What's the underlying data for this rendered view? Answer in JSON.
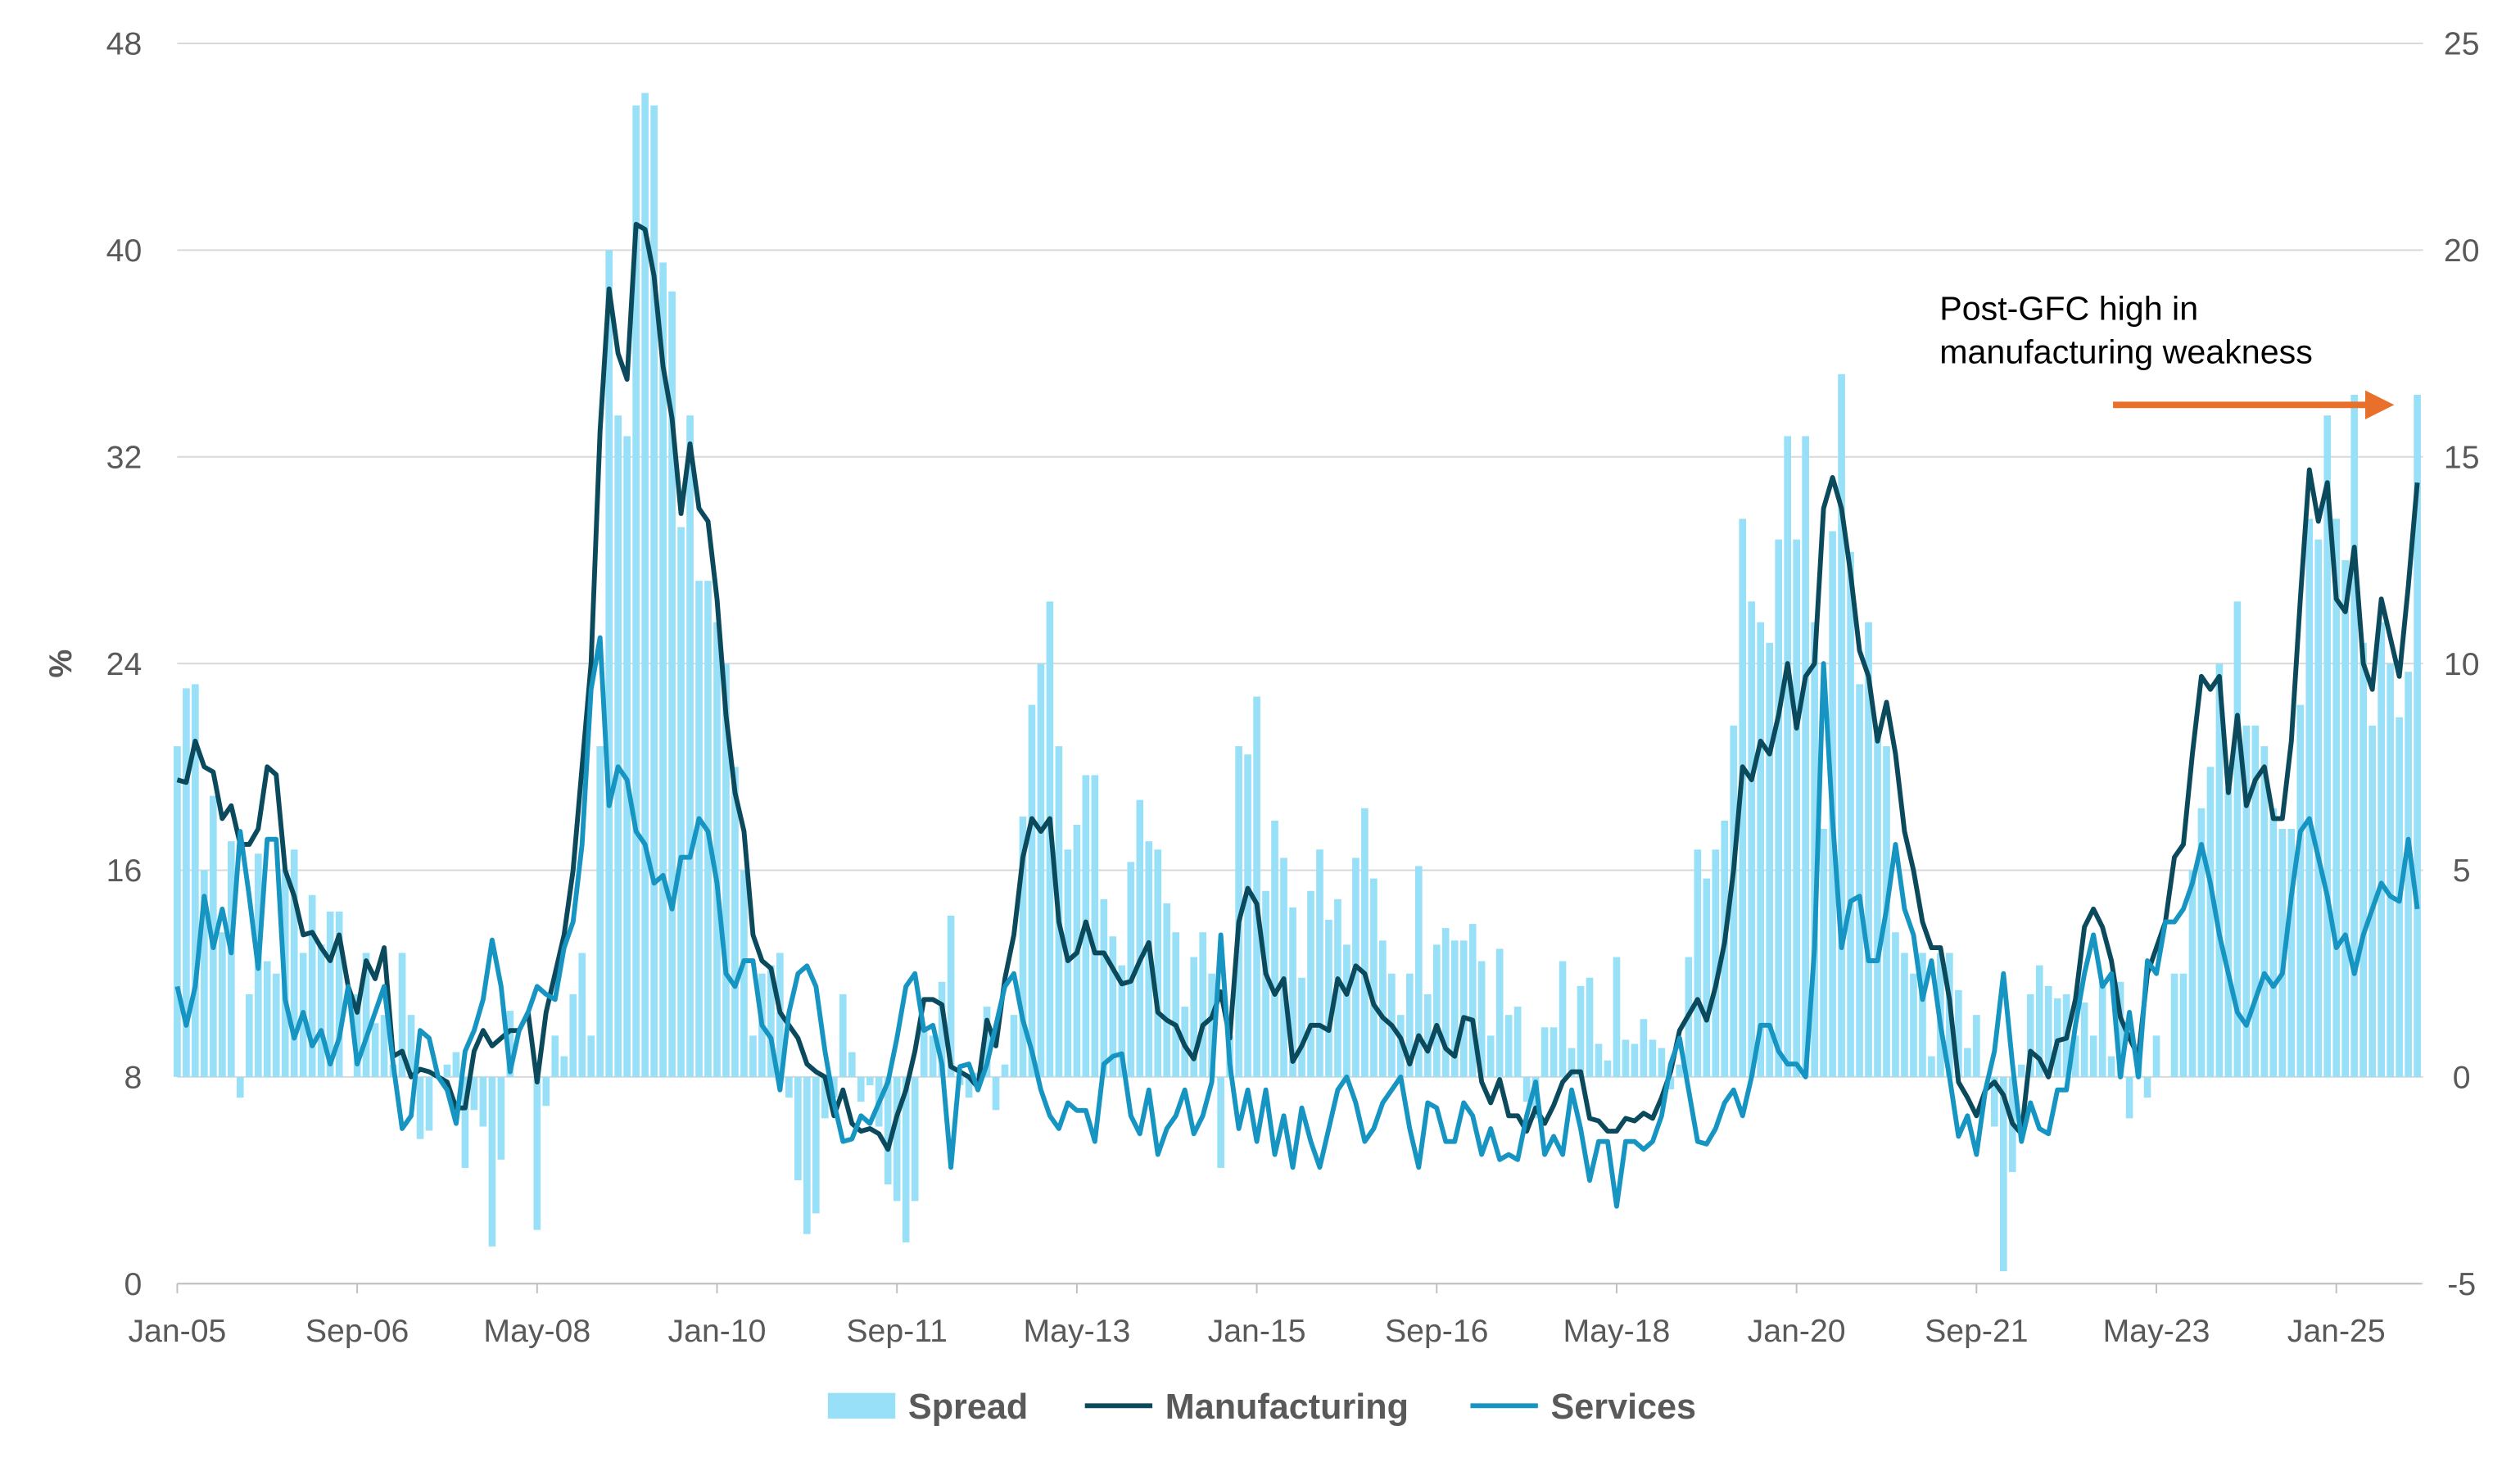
{
  "chart_data": {
    "type": "combo",
    "y_label": "%",
    "categories": [
      "Jan-05",
      null,
      null,
      null,
      null,
      null,
      null,
      null,
      null,
      null,
      null,
      null,
      null,
      null,
      null,
      null,
      null,
      null,
      null,
      null,
      "Sep-06",
      null,
      null,
      null,
      null,
      null,
      null,
      null,
      null,
      null,
      null,
      null,
      null,
      null,
      null,
      null,
      null,
      null,
      null,
      null,
      "May-08",
      null,
      null,
      null,
      null,
      null,
      null,
      null,
      null,
      null,
      null,
      null,
      null,
      null,
      null,
      null,
      null,
      null,
      null,
      null,
      "Jan-10",
      null,
      null,
      null,
      null,
      null,
      null,
      null,
      null,
      null,
      null,
      null,
      null,
      null,
      null,
      null,
      null,
      null,
      null,
      null,
      "Sep-11",
      null,
      null,
      null,
      null,
      null,
      null,
      null,
      null,
      null,
      null,
      null,
      null,
      null,
      null,
      null,
      null,
      null,
      null,
      null,
      "May-13",
      null,
      null,
      null,
      null,
      null,
      null,
      null,
      null,
      null,
      null,
      null,
      null,
      null,
      null,
      null,
      null,
      null,
      null,
      null,
      "Jan-15",
      null,
      null,
      null,
      null,
      null,
      null,
      null,
      null,
      null,
      null,
      null,
      null,
      null,
      null,
      null,
      null,
      null,
      null,
      null,
      "Sep-16",
      null,
      null,
      null,
      null,
      null,
      null,
      null,
      null,
      null,
      null,
      null,
      null,
      null,
      null,
      null,
      null,
      null,
      null,
      null,
      "May-18",
      null,
      null,
      null,
      null,
      null,
      null,
      null,
      null,
      null,
      null,
      null,
      null,
      null,
      null,
      null,
      null,
      null,
      null,
      null,
      "Jan-20",
      null,
      null,
      null,
      null,
      null,
      null,
      null,
      null,
      null,
      null,
      null,
      null,
      null,
      null,
      null,
      null,
      null,
      null,
      null,
      "Sep-21",
      null,
      null,
      null,
      null,
      null,
      null,
      null,
      null,
      null,
      null,
      null,
      null,
      null,
      null,
      null,
      null,
      null,
      null,
      null,
      "May-23",
      null,
      null,
      null,
      null,
      null,
      null,
      null,
      null,
      null,
      null,
      null,
      null,
      null,
      null,
      null,
      null,
      null,
      null,
      null,
      "Jan-25",
      null,
      null,
      null,
      null,
      null,
      null,
      null,
      null,
      null
    ],
    "series": [
      {
        "name": "Spread",
        "type": "bar",
        "axis": "y2",
        "color": "#97e0f7",
        "values": [
          8,
          9.4,
          9.5,
          5,
          6.8,
          3.5,
          5.7,
          -0.5,
          2,
          5.4,
          2.8,
          2.5,
          5,
          5.5,
          3,
          4.4,
          3.2,
          4,
          4,
          0,
          2,
          3,
          1.3,
          1.5,
          0.3,
          3,
          1.5,
          -1.5,
          -1.3,
          0,
          0.3,
          0.6,
          -2.2,
          -0.8,
          -1.2,
          -4.1,
          -2,
          1.6,
          0,
          0,
          -3.7,
          -0.7,
          1,
          0.5,
          2,
          3,
          1,
          8,
          20,
          16,
          15.5,
          23.5,
          23.8,
          23.5,
          19.7,
          19,
          13.3,
          16,
          12,
          12,
          11,
          10,
          7.5,
          5,
          1,
          2.5,
          2.7,
          3,
          -0.5,
          -2.5,
          -3.8,
          -3.3,
          -1,
          -0.5,
          2,
          0.6,
          -0.6,
          -0.2,
          -1.2,
          -2.6,
          -3,
          -4,
          -3,
          1.2,
          1,
          2.3,
          3.9,
          -0.2,
          -0.5,
          0.1,
          1.7,
          -0.8,
          0.3,
          1.5,
          6.3,
          9,
          10,
          11.5,
          8,
          5.5,
          6.1,
          7.3,
          7.3,
          4.3,
          3.4,
          2.7,
          5.2,
          6.7,
          5.7,
          5.5,
          4.2,
          3.5,
          1.7,
          2.9,
          3.5,
          2.5,
          -2.2,
          1,
          8,
          7.8,
          9.2,
          4.5,
          6.2,
          5.3,
          4.1,
          2.4,
          4.5,
          5.5,
          3.8,
          4.3,
          3.2,
          5.3,
          6.5,
          4.8,
          3.3,
          2.5,
          1.5,
          2.5,
          5.1,
          2,
          3.2,
          3.6,
          3.3,
          3.3,
          3.7,
          2.8,
          1,
          3.1,
          1.5,
          1.7,
          -0.6,
          -1,
          1.2,
          1.2,
          2.8,
          0.7,
          2.2,
          2.4,
          0.8,
          0.4,
          2.9,
          0.9,
          0.8,
          1.4,
          0.9,
          0.7,
          -0.3,
          0.3,
          2.9,
          5.5,
          4.8,
          5.5,
          6.2,
          8.5,
          13.5,
          11.5,
          11,
          10.5,
          13,
          15.5,
          13,
          15.5,
          11,
          6,
          13.2,
          17,
          12.7,
          9.5,
          11,
          8.5,
          8,
          3.5,
          3,
          2.5,
          3,
          0.5,
          3,
          3,
          2.1,
          0.7,
          1.5,
          0,
          -1.2,
          -4.7,
          -2.3,
          0.3,
          2,
          2.7,
          2.2,
          1.9,
          2,
          1,
          1.8,
          1,
          2.3,
          0.5,
          2.3,
          -1,
          0.8,
          -0.5,
          1,
          0,
          2.5,
          2.5,
          5,
          6.5,
          7.5,
          10,
          7,
          11.5,
          8.5,
          8.5,
          8,
          6.5,
          6,
          6,
          9,
          13.5,
          13,
          16,
          13.5,
          12.5,
          16.5,
          10.5,
          8.5,
          11,
          10,
          8.7,
          9.8,
          16.5
        ]
      },
      {
        "name": "Manufacturing",
        "type": "line",
        "color": "#0b4a5c",
        "values": [
          19.5,
          19.4,
          21,
          20,
          19.8,
          18,
          18.5,
          17,
          17,
          17.6,
          20,
          19.7,
          16,
          15,
          13.5,
          13.6,
          13,
          12.5,
          13.5,
          11.5,
          10.5,
          12.5,
          11.8,
          13,
          8.8,
          9,
          8,
          8.3,
          8.2,
          8,
          7.8,
          6.8,
          6.8,
          9,
          9.8,
          9.2,
          9.5,
          9.8,
          9.8,
          10.5,
          7.8,
          10.5,
          12,
          13.5,
          16,
          20,
          24,
          33,
          38.5,
          36,
          35,
          41,
          40.8,
          39,
          35.5,
          33.5,
          29.8,
          32.5,
          30,
          29.5,
          26.5,
          22,
          19,
          17.5,
          13.5,
          12.5,
          12.2,
          10.5,
          10,
          9.5,
          8.5,
          8.2,
          8,
          6.5,
          7.5,
          6.2,
          5.9,
          6,
          5.8,
          5.2,
          6.5,
          7.5,
          9,
          11,
          11,
          10.8,
          8.4,
          8.2,
          8,
          7.6,
          10.2,
          9.2,
          11.8,
          13.5,
          16.5,
          18,
          17.5,
          18,
          14,
          12.5,
          12.8,
          14,
          12.8,
          12.8,
          12.2,
          11.6,
          11.7,
          12.5,
          13.2,
          10.5,
          10.2,
          10,
          9.2,
          8.7,
          10,
          10.3,
          11.3,
          9.5,
          14,
          15.3,
          14.7,
          12,
          11.2,
          11.8,
          8.6,
          9.2,
          10,
          10,
          9.8,
          11.8,
          11.2,
          12.3,
          12,
          10.8,
          10.3,
          10,
          9.5,
          8.5,
          9.6,
          9,
          10,
          9.1,
          8.8,
          10.3,
          10.2,
          7.8,
          7,
          7.9,
          6.5,
          6.5,
          5.9,
          6.8,
          6.2,
          6.9,
          7.8,
          8.2,
          8.2,
          6.4,
          6.3,
          5.9,
          5.9,
          6.4,
          6.3,
          6.6,
          6.4,
          7.2,
          8.2,
          9.8,
          10.4,
          11,
          10.2,
          11.5,
          13.2,
          16,
          20,
          19.5,
          21,
          20.5,
          22,
          24,
          21.5,
          23.5,
          24,
          30,
          31.2,
          30,
          27.5,
          24.5,
          23.5,
          21,
          22.5,
          20.5,
          17.5,
          16,
          14,
          13,
          13,
          11,
          7.8,
          7.2,
          6.5,
          7.5,
          7.8,
          7.3,
          6.2,
          5.8,
          9,
          8.7,
          8,
          9.4,
          9.5,
          11,
          13.8,
          14.5,
          13.8,
          12.5,
          10.3,
          9.5,
          8.8,
          12,
          13,
          14,
          16.5,
          17,
          20.5,
          23.5,
          23,
          23.5,
          19,
          22,
          18.5,
          19.5,
          20,
          18,
          18,
          21,
          26.5,
          31.5,
          29.5,
          31,
          26.5,
          26,
          28.5,
          24,
          23,
          26.5,
          25,
          23.5,
          27,
          31
        ]
      },
      {
        "name": "Services",
        "type": "line",
        "color": "#1795c2",
        "values": [
          11.5,
          10,
          11.5,
          15,
          13,
          14.5,
          12.8,
          17.5,
          15,
          12.2,
          17.2,
          17.2,
          11,
          9.5,
          10.5,
          9.2,
          9.8,
          8.5,
          9.5,
          11.5,
          8.5,
          9.5,
          10.5,
          11.5,
          8.5,
          6,
          6.5,
          9.8,
          9.5,
          8,
          7.5,
          6.2,
          9,
          9.8,
          11,
          13.3,
          11.5,
          8.2,
          9.8,
          10.5,
          11.5,
          11.2,
          11,
          13,
          14,
          17,
          23,
          25,
          18.5,
          20,
          19.5,
          17.5,
          17,
          15.5,
          15.8,
          14.5,
          16.5,
          16.5,
          18,
          17.5,
          15.5,
          12,
          11.5,
          12.5,
          12.5,
          10,
          9.5,
          7.5,
          10.5,
          12,
          12.3,
          11.5,
          9,
          7,
          5.5,
          5.6,
          6.5,
          6.2,
          7,
          7.8,
          9.5,
          11.5,
          12,
          9.8,
          10,
          8.5,
          4.5,
          8.4,
          8.5,
          7.5,
          8.5,
          10,
          11.5,
          12,
          10.2,
          9,
          7.5,
          6.5,
          6,
          7,
          6.7,
          6.7,
          5.5,
          8.5,
          8.8,
          8.9,
          6.5,
          5.8,
          7.5,
          5,
          6,
          6.5,
          7.5,
          5.8,
          6.5,
          7.8,
          13.5,
          8.5,
          6,
          7.5,
          5.5,
          7.5,
          5,
          6.5,
          4.5,
          6.8,
          5.5,
          4.5,
          6,
          7.5,
          8,
          7,
          5.5,
          6,
          7,
          7.5,
          8,
          6,
          4.5,
          7,
          6.8,
          5.5,
          5.5,
          7,
          6.5,
          5,
          6,
          4.8,
          5,
          4.8,
          6.5,
          7.8,
          5,
          5.7,
          5,
          7.5,
          6,
          4,
          5.5,
          5.5,
          3,
          5.5,
          5.5,
          5.2,
          5.5,
          6.5,
          8.5,
          9.5,
          7.5,
          5.5,
          5.4,
          6,
          7,
          7.5,
          6.5,
          8,
          10,
          10,
          9,
          8.5,
          8.5,
          8,
          13,
          24,
          18,
          13,
          14.8,
          15,
          12.5,
          12.5,
          14.5,
          17,
          14.5,
          13.5,
          11,
          12.5,
          10,
          8,
          5.7,
          6.5,
          5,
          7.5,
          9,
          12,
          8.5,
          5.5,
          7,
          6,
          5.8,
          7.5,
          7.5,
          10,
          12,
          13.5,
          11.5,
          12,
          8,
          10.5,
          8,
          12.5,
          12,
          14,
          14,
          14.5,
          15.5,
          17,
          15.5,
          13.5,
          12,
          10.5,
          10,
          11,
          12,
          11.5,
          12,
          15,
          17.5,
          18,
          16.5,
          15,
          13,
          13.5,
          12,
          13.5,
          14.5,
          15.5,
          15,
          14.8,
          17.2,
          14.5
        ]
      }
    ],
    "ylim": [
      0,
      48
    ],
    "yticks": [
      0,
      8,
      16,
      24,
      32,
      40,
      48
    ],
    "y2lim": [
      -5,
      25
    ],
    "y2ticks": [
      -5,
      0,
      5,
      10,
      15,
      20,
      25
    ],
    "grid": true,
    "legend": "bottom",
    "annotation": {
      "lines": [
        "Post-GFC high in",
        "manufacturing weakness"
      ],
      "color": "#e8702a"
    }
  }
}
